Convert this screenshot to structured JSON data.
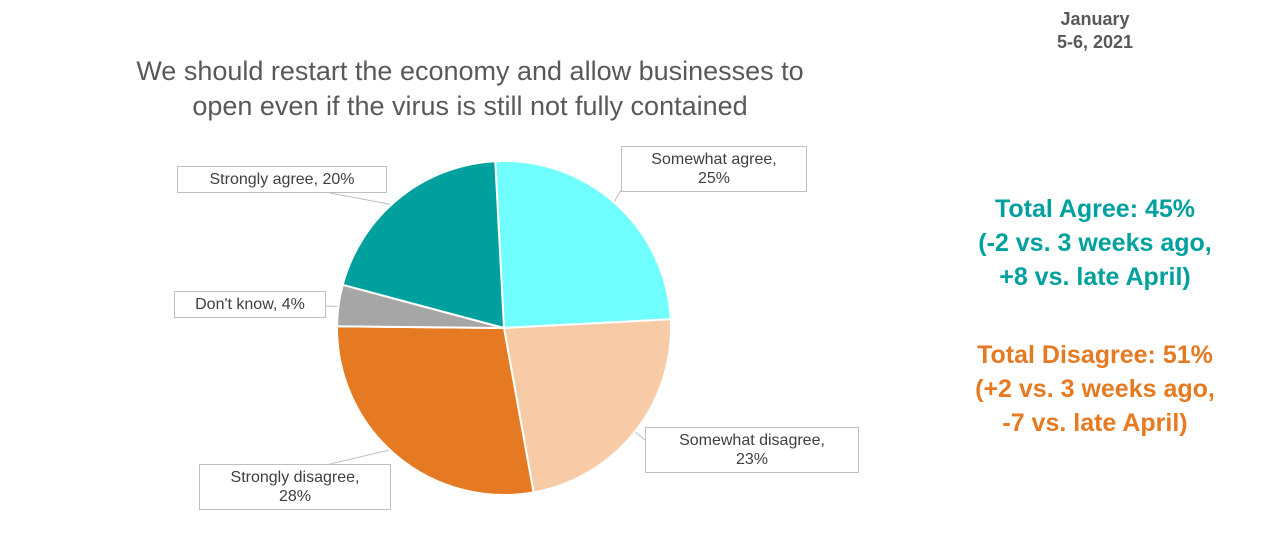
{
  "date": {
    "line1": "January",
    "line2": "5-6, 2021"
  },
  "chart_data": {
    "type": "pie",
    "title_lines": [
      "We should restart the economy and allow businesses to",
      "open even if the virus is still not fully contained"
    ],
    "slices": [
      {
        "key": "somewhat_agree",
        "label_lines": [
          "Somewhat agree,",
          "25%"
        ],
        "value": 25,
        "color": "#70FEFF"
      },
      {
        "key": "somewhat_disagree",
        "label_lines": [
          "Somewhat disagree,",
          "23%"
        ],
        "value": 23,
        "color": "#F6CBA6"
      },
      {
        "key": "strongly_disagree",
        "label_lines": [
          "Strongly disagree,",
          "28%"
        ],
        "value": 28,
        "color": "#E67A22"
      },
      {
        "key": "dont_know",
        "label_lines": [
          "Don't know, 4%"
        ],
        "value": 4,
        "color": "#A6A6A6"
      },
      {
        "key": "strongly_agree",
        "label_lines": [
          "Strongly agree, 20%"
        ],
        "value": 20,
        "color": "#00A09F"
      }
    ]
  },
  "summary": {
    "agree": {
      "color": "#00A09F",
      "lines": [
        "Total Agree: 45%",
        "(-2 vs. 3 weeks ago,",
        "+8 vs. late April)"
      ]
    },
    "disagree": {
      "color": "#E67A22",
      "lines": [
        "Total Disagree: 51%",
        "(+2 vs. 3 weeks ago,",
        "-7 vs. late April)"
      ]
    }
  }
}
